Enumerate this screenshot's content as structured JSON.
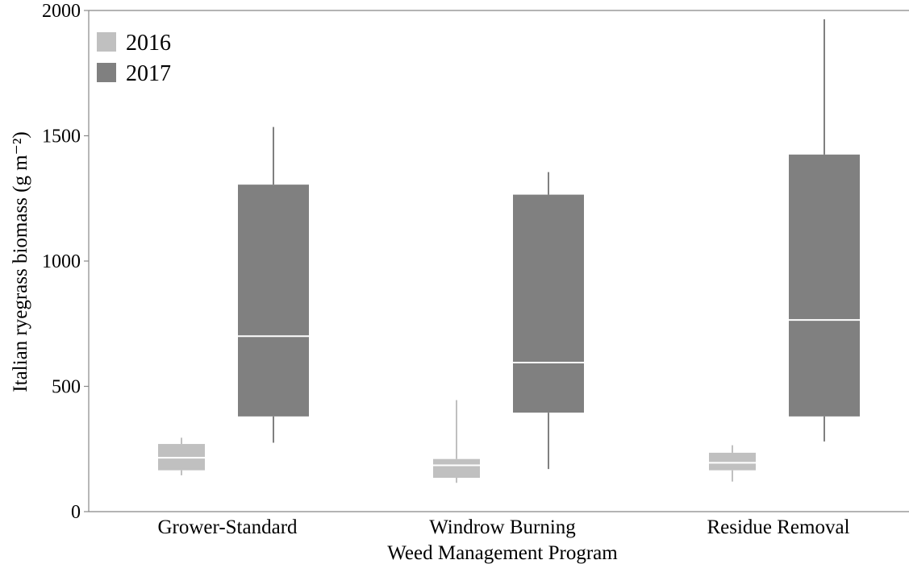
{
  "chart_data": {
    "type": "box",
    "xlabel": "Weed Management Program",
    "ylabel": "Italian ryegrass biomass (g m⁻²)",
    "ylim": [
      0,
      2000
    ],
    "yticks": [
      "0",
      "500",
      "1000",
      "1500",
      "2000"
    ],
    "categories": [
      "Grower-Standard",
      "Windrow Burning",
      "Residue Removal"
    ],
    "legend_position": "top-left",
    "grid": false,
    "series": [
      {
        "name": "2016",
        "color": "#c0c0c0",
        "boxes": [
          {
            "min": 145,
            "q1": 165,
            "median": 215,
            "q3": 270,
            "max": 295
          },
          {
            "min": 115,
            "q1": 135,
            "median": 185,
            "q3": 210,
            "max": 445
          },
          {
            "min": 120,
            "q1": 165,
            "median": 195,
            "q3": 235,
            "max": 265
          }
        ]
      },
      {
        "name": "2017",
        "color": "#808080",
        "boxes": [
          {
            "min": 275,
            "q1": 380,
            "median": 700,
            "q3": 1305,
            "max": 1535
          },
          {
            "min": 170,
            "q1": 395,
            "median": 595,
            "q3": 1265,
            "max": 1355
          },
          {
            "min": 280,
            "q1": 380,
            "median": 765,
            "q3": 1425,
            "max": 1965
          }
        ]
      }
    ]
  }
}
